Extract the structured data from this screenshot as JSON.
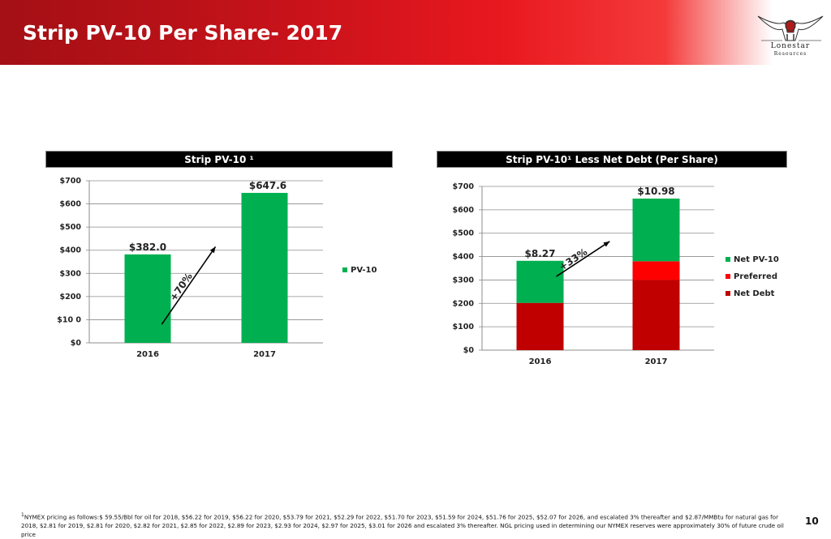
{
  "page": {
    "title": "Strip PV-10 Per Share- 2017",
    "page_number": "10",
    "footnote_marker": "1",
    "footnote": "NYMEX pricing as follows:$ 59.55/Bbl for oil for 2018, $56.22 for 2019, $56.22 for 2020, $53.79 for 2021, $52.29 for 2022, $51.70 for 2023, $51.59 for 2024, $51.76 for 2025, $52.07 for 2026, and escalated 3% thereafter and $2.87/MMBtu for natural gas for 2018, $2.81 for 2019, $2.81 for 2020, $2.82 for 2021, $2.85 for 2022, $2.89 for 2023, $2.93 for 2024, $2.97 for 2025, $3.01 for 2026 and escalated 3% thereafter. NGL pricing used in determining our NYMEX reserves were approximately 30% of future crude oil price"
  },
  "logo": {
    "name": "Lonestar",
    "sub": "Resources"
  },
  "colors": {
    "green": "#00b050",
    "red": "#ff0000",
    "dark_red": "#c00000",
    "black": "#000000"
  },
  "panels": [
    {
      "header": "Strip PV-10 ¹"
    },
    {
      "header": "Strip PV-10¹ Less Net Debt (Per Share)"
    }
  ],
  "chart_data": [
    {
      "type": "bar",
      "title": "Strip PV-10 ¹",
      "categories": [
        "2016",
        "2017"
      ],
      "series": [
        {
          "name": "PV-10",
          "values": [
            382.0,
            647.6
          ],
          "color": "#00b050"
        }
      ],
      "data_labels": [
        "$382.0",
        "$647.6"
      ],
      "ylim": [
        0,
        700
      ],
      "yticks": [
        0,
        100,
        200,
        300,
        400,
        500,
        600,
        700
      ],
      "ytick_labels": [
        "$0",
        "$10 0",
        "$200",
        "$300",
        "$400",
        "$500",
        "$600",
        "$700"
      ],
      "annotation": "+70%",
      "legend": [
        "PV-10"
      ],
      "legend_position": "right"
    },
    {
      "type": "bar",
      "stacked": true,
      "title": "Strip PV-10¹ Less Net Debt (Per Share)",
      "categories": [
        "2016",
        "2017"
      ],
      "series": [
        {
          "name": "Net Debt",
          "values": [
            202,
            300
          ],
          "color": "#c00000"
        },
        {
          "name": "Preferred",
          "values": [
            0,
            80
          ],
          "color": "#ff0000"
        },
        {
          "name": "Net PV-10",
          "values": [
            180,
            268
          ],
          "color": "#00b050"
        }
      ],
      "data_labels": [
        "$8.27",
        "$10.98"
      ],
      "ylim": [
        0,
        700
      ],
      "yticks": [
        0,
        100,
        200,
        300,
        400,
        500,
        600,
        700
      ],
      "ytick_labels": [
        "$0",
        "$100",
        "$200",
        "$300",
        "$400",
        "$500",
        "$600",
        "$700"
      ],
      "annotation": "+33%",
      "legend": [
        "Net PV-10",
        "Preferred",
        "Net Debt"
      ],
      "legend_position": "right"
    }
  ]
}
